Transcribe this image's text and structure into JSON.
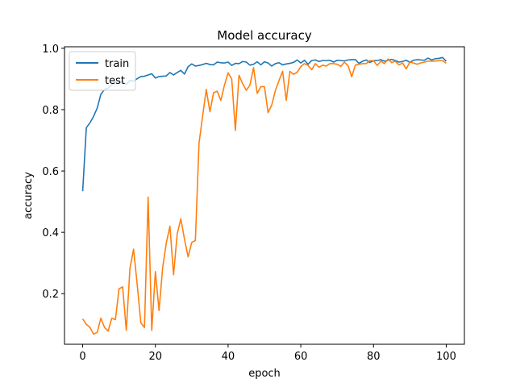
{
  "chart_data": {
    "type": "line",
    "title": "Model accuracy",
    "xlabel": "epoch",
    "ylabel": "accuracy",
    "xlim": [
      -5,
      105
    ],
    "ylim": [
      0.035,
      1.005
    ],
    "xticks": [
      0,
      20,
      40,
      60,
      80,
      100
    ],
    "yticks": [
      0.2,
      0.4,
      0.6,
      0.8,
      1.0
    ],
    "xtick_labels": [
      "0",
      "20",
      "40",
      "60",
      "80",
      "100"
    ],
    "ytick_labels": [
      "0.2",
      "0.4",
      "0.6",
      "0.8",
      "1.0"
    ],
    "grid": false,
    "legend_position": "upper-left",
    "series": [
      {
        "name": "train",
        "color": "#1f77b4",
        "values": [
          0.534,
          0.741,
          0.757,
          0.778,
          0.805,
          0.85,
          0.866,
          0.87,
          0.88,
          0.892,
          0.886,
          0.893,
          0.882,
          0.895,
          0.893,
          0.901,
          0.908,
          0.909,
          0.913,
          0.917,
          0.903,
          0.908,
          0.909,
          0.91,
          0.921,
          0.913,
          0.921,
          0.928,
          0.916,
          0.94,
          0.949,
          0.942,
          0.944,
          0.947,
          0.951,
          0.947,
          0.946,
          0.955,
          0.953,
          0.952,
          0.955,
          0.944,
          0.951,
          0.95,
          0.957,
          0.955,
          0.945,
          0.948,
          0.956,
          0.946,
          0.956,
          0.952,
          0.942,
          0.95,
          0.953,
          0.946,
          0.949,
          0.951,
          0.954,
          0.962,
          0.952,
          0.961,
          0.948,
          0.96,
          0.962,
          0.957,
          0.96,
          0.96,
          0.961,
          0.955,
          0.961,
          0.96,
          0.959,
          0.962,
          0.963,
          0.963,
          0.951,
          0.958,
          0.962,
          0.954,
          0.96,
          0.96,
          0.963,
          0.958,
          0.961,
          0.964,
          0.96,
          0.955,
          0.957,
          0.961,
          0.954,
          0.961,
          0.963,
          0.962,
          0.961,
          0.968,
          0.962,
          0.966,
          0.967,
          0.97,
          0.958
        ],
        "x": [
          0,
          1,
          2,
          3,
          4,
          5,
          6,
          7,
          8,
          9,
          10,
          11,
          12,
          13,
          14,
          15,
          16,
          17,
          18,
          19,
          20,
          21,
          22,
          23,
          24,
          25,
          26,
          27,
          28,
          29,
          30,
          31,
          32,
          33,
          34,
          35,
          36,
          37,
          38,
          39,
          40,
          41,
          42,
          43,
          44,
          45,
          46,
          47,
          48,
          49,
          50,
          51,
          52,
          53,
          54,
          55,
          56,
          57,
          58,
          59,
          60,
          61,
          62,
          63,
          64,
          65,
          66,
          67,
          68,
          69,
          70,
          71,
          72,
          73,
          74,
          75,
          76,
          77,
          78,
          79,
          80,
          81,
          82,
          83,
          84,
          85,
          86,
          87,
          88,
          89,
          90,
          91,
          92,
          93,
          94,
          95,
          96,
          97,
          98,
          99,
          100
        ]
      },
      {
        "name": "test",
        "color": "#ff7f0e",
        "values": [
          0.118,
          0.1,
          0.09,
          0.068,
          0.074,
          0.12,
          0.09,
          0.078,
          0.12,
          0.115,
          0.216,
          0.222,
          0.08,
          0.282,
          0.345,
          0.23,
          0.105,
          0.09,
          0.515,
          0.08,
          0.272,
          0.145,
          0.285,
          0.365,
          0.42,
          0.262,
          0.395,
          0.444,
          0.378,
          0.32,
          0.367,
          0.373,
          0.69,
          0.78,
          0.866,
          0.793,
          0.855,
          0.86,
          0.83,
          0.88,
          0.92,
          0.9,
          0.732,
          0.912,
          0.885,
          0.863,
          0.88,
          0.937,
          0.853,
          0.875,
          0.875,
          0.79,
          0.815,
          0.862,
          0.895,
          0.925,
          0.83,
          0.925,
          0.915,
          0.922,
          0.94,
          0.95,
          0.944,
          0.93,
          0.95,
          0.938,
          0.945,
          0.942,
          0.95,
          0.95,
          0.948,
          0.941,
          0.955,
          0.943,
          0.907,
          0.945,
          0.948,
          0.95,
          0.95,
          0.96,
          0.96,
          0.944,
          0.958,
          0.95,
          0.965,
          0.953,
          0.958,
          0.946,
          0.952,
          0.933,
          0.955,
          0.952,
          0.948,
          0.952,
          0.955,
          0.958,
          0.958,
          0.958,
          0.96,
          0.96,
          0.951
        ],
        "x": [
          0,
          1,
          2,
          3,
          4,
          5,
          6,
          7,
          8,
          9,
          10,
          11,
          12,
          13,
          14,
          15,
          16,
          17,
          18,
          19,
          20,
          21,
          22,
          23,
          24,
          25,
          26,
          27,
          28,
          29,
          30,
          31,
          32,
          33,
          34,
          35,
          36,
          37,
          38,
          39,
          40,
          41,
          42,
          43,
          44,
          45,
          46,
          47,
          48,
          49,
          50,
          51,
          52,
          53,
          54,
          55,
          56,
          57,
          58,
          59,
          60,
          61,
          62,
          63,
          64,
          65,
          66,
          67,
          68,
          69,
          70,
          71,
          72,
          73,
          74,
          75,
          76,
          77,
          78,
          79,
          80,
          81,
          82,
          83,
          84,
          85,
          86,
          87,
          88,
          89,
          90,
          91,
          92,
          93,
          94,
          95,
          96,
          97,
          98,
          99,
          100
        ]
      }
    ]
  }
}
